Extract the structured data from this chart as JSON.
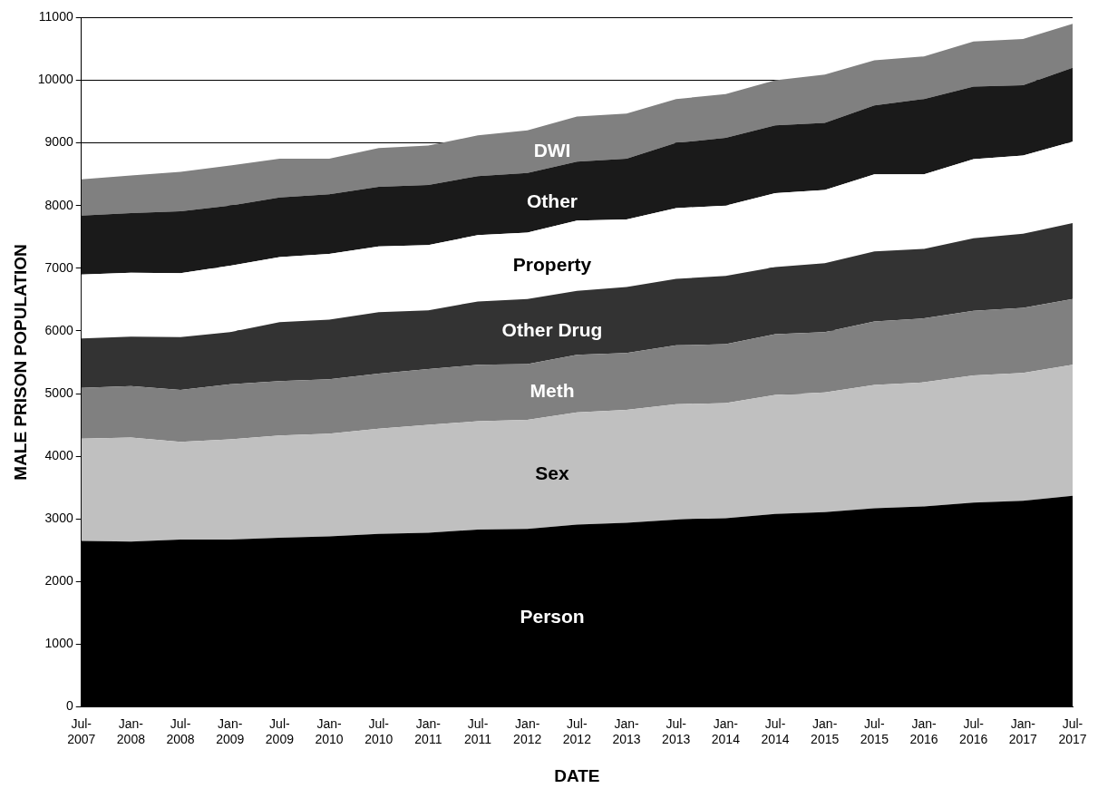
{
  "chart_data": {
    "type": "area",
    "stacked": true,
    "xlabel": "DATE",
    "ylabel": "MALE PRISON POPULATION",
    "categories": [
      "Jul-2007",
      "Jan-2008",
      "Jul-2008",
      "Jan-2009",
      "Jul-2009",
      "Jan-2010",
      "Jul-2010",
      "Jan-2011",
      "Jul-2011",
      "Jan-2012",
      "Jul-2012",
      "Jan-2013",
      "Jul-2013",
      "Jan-2014",
      "Jul-2014",
      "Jan-2015",
      "Jul-2015",
      "Jan-2016",
      "Jul-2016",
      "Jan-2017",
      "Jul-2017"
    ],
    "series": [
      {
        "name": "Person",
        "color": "#000000",
        "values": [
          2650,
          2640,
          2670,
          2670,
          2700,
          2720,
          2760,
          2780,
          2830,
          2840,
          2910,
          2940,
          2990,
          3010,
          3080,
          3110,
          3170,
          3200,
          3260,
          3290,
          3370
        ]
      },
      {
        "name": "Sex",
        "color": "#c0c0c0",
        "values": [
          1630,
          1660,
          1560,
          1600,
          1630,
          1640,
          1680,
          1720,
          1730,
          1740,
          1790,
          1800,
          1840,
          1840,
          1900,
          1910,
          1970,
          1980,
          2030,
          2040,
          2090
        ]
      },
      {
        "name": "Meth",
        "color": "#808080",
        "values": [
          810,
          820,
          830,
          880,
          870,
          870,
          880,
          890,
          900,
          890,
          920,
          910,
          940,
          940,
          970,
          960,
          1010,
          1020,
          1030,
          1040,
          1050
        ]
      },
      {
        "name": "Other Drug",
        "color": "#333333",
        "values": [
          790,
          790,
          840,
          830,
          940,
          950,
          980,
          940,
          1010,
          1040,
          1020,
          1050,
          1060,
          1090,
          1070,
          1100,
          1120,
          1110,
          1160,
          1180,
          1210
        ]
      },
      {
        "name": "Property",
        "color": "#ffffff",
        "values": [
          1020,
          1020,
          1020,
          1060,
          1040,
          1050,
          1050,
          1040,
          1060,
          1060,
          1120,
          1080,
          1130,
          1120,
          1180,
          1170,
          1230,
          1190,
          1260,
          1250,
          1300
        ]
      },
      {
        "name": "Other",
        "color": "#1a1a1a",
        "values": [
          940,
          950,
          990,
          960,
          950,
          950,
          950,
          960,
          940,
          950,
          940,
          970,
          1040,
          1080,
          1080,
          1070,
          1100,
          1200,
          1160,
          1120,
          1180
        ]
      },
      {
        "name": "DWI",
        "color": "#808080",
        "values": [
          580,
          600,
          630,
          640,
          620,
          570,
          620,
          630,
          650,
          680,
          720,
          720,
          700,
          700,
          720,
          770,
          720,
          680,
          720,
          740,
          700
        ]
      }
    ],
    "ylim": [
      0,
      11000
    ],
    "yticks": [
      0,
      1000,
      2000,
      3000,
      4000,
      5000,
      6000,
      7000,
      8000,
      9000,
      10000,
      11000
    ],
    "grid": "y",
    "legend": false
  }
}
